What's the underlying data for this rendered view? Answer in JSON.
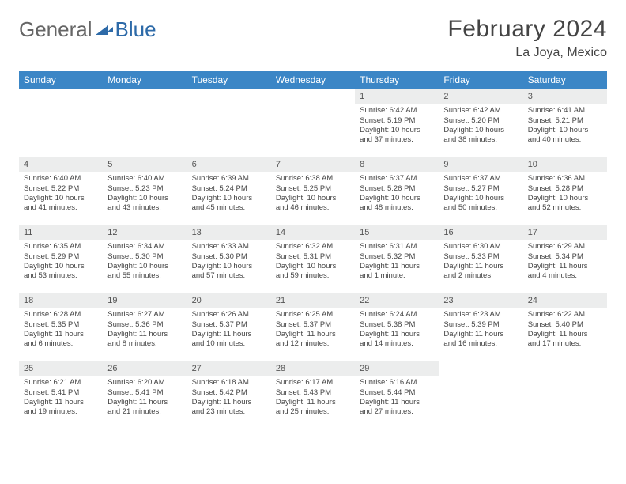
{
  "logo": {
    "part1": "General",
    "part2": "Blue"
  },
  "title": "February 2024",
  "location": "La Joya, Mexico",
  "headerColor": "#3b86c6",
  "borderColor": "#3b6a9a",
  "dayBg": "#eceded",
  "dayNames": [
    "Sunday",
    "Monday",
    "Tuesday",
    "Wednesday",
    "Thursday",
    "Friday",
    "Saturday"
  ],
  "weeks": [
    [
      {
        "n": "",
        "sr": "",
        "ss": "",
        "dl": ""
      },
      {
        "n": "",
        "sr": "",
        "ss": "",
        "dl": ""
      },
      {
        "n": "",
        "sr": "",
        "ss": "",
        "dl": ""
      },
      {
        "n": "",
        "sr": "",
        "ss": "",
        "dl": ""
      },
      {
        "n": "1",
        "sr": "Sunrise: 6:42 AM",
        "ss": "Sunset: 5:19 PM",
        "dl": "Daylight: 10 hours and 37 minutes."
      },
      {
        "n": "2",
        "sr": "Sunrise: 6:42 AM",
        "ss": "Sunset: 5:20 PM",
        "dl": "Daylight: 10 hours and 38 minutes."
      },
      {
        "n": "3",
        "sr": "Sunrise: 6:41 AM",
        "ss": "Sunset: 5:21 PM",
        "dl": "Daylight: 10 hours and 40 minutes."
      }
    ],
    [
      {
        "n": "4",
        "sr": "Sunrise: 6:40 AM",
        "ss": "Sunset: 5:22 PM",
        "dl": "Daylight: 10 hours and 41 minutes."
      },
      {
        "n": "5",
        "sr": "Sunrise: 6:40 AM",
        "ss": "Sunset: 5:23 PM",
        "dl": "Daylight: 10 hours and 43 minutes."
      },
      {
        "n": "6",
        "sr": "Sunrise: 6:39 AM",
        "ss": "Sunset: 5:24 PM",
        "dl": "Daylight: 10 hours and 45 minutes."
      },
      {
        "n": "7",
        "sr": "Sunrise: 6:38 AM",
        "ss": "Sunset: 5:25 PM",
        "dl": "Daylight: 10 hours and 46 minutes."
      },
      {
        "n": "8",
        "sr": "Sunrise: 6:37 AM",
        "ss": "Sunset: 5:26 PM",
        "dl": "Daylight: 10 hours and 48 minutes."
      },
      {
        "n": "9",
        "sr": "Sunrise: 6:37 AM",
        "ss": "Sunset: 5:27 PM",
        "dl": "Daylight: 10 hours and 50 minutes."
      },
      {
        "n": "10",
        "sr": "Sunrise: 6:36 AM",
        "ss": "Sunset: 5:28 PM",
        "dl": "Daylight: 10 hours and 52 minutes."
      }
    ],
    [
      {
        "n": "11",
        "sr": "Sunrise: 6:35 AM",
        "ss": "Sunset: 5:29 PM",
        "dl": "Daylight: 10 hours and 53 minutes."
      },
      {
        "n": "12",
        "sr": "Sunrise: 6:34 AM",
        "ss": "Sunset: 5:30 PM",
        "dl": "Daylight: 10 hours and 55 minutes."
      },
      {
        "n": "13",
        "sr": "Sunrise: 6:33 AM",
        "ss": "Sunset: 5:30 PM",
        "dl": "Daylight: 10 hours and 57 minutes."
      },
      {
        "n": "14",
        "sr": "Sunrise: 6:32 AM",
        "ss": "Sunset: 5:31 PM",
        "dl": "Daylight: 10 hours and 59 minutes."
      },
      {
        "n": "15",
        "sr": "Sunrise: 6:31 AM",
        "ss": "Sunset: 5:32 PM",
        "dl": "Daylight: 11 hours and 1 minute."
      },
      {
        "n": "16",
        "sr": "Sunrise: 6:30 AM",
        "ss": "Sunset: 5:33 PM",
        "dl": "Daylight: 11 hours and 2 minutes."
      },
      {
        "n": "17",
        "sr": "Sunrise: 6:29 AM",
        "ss": "Sunset: 5:34 PM",
        "dl": "Daylight: 11 hours and 4 minutes."
      }
    ],
    [
      {
        "n": "18",
        "sr": "Sunrise: 6:28 AM",
        "ss": "Sunset: 5:35 PM",
        "dl": "Daylight: 11 hours and 6 minutes."
      },
      {
        "n": "19",
        "sr": "Sunrise: 6:27 AM",
        "ss": "Sunset: 5:36 PM",
        "dl": "Daylight: 11 hours and 8 minutes."
      },
      {
        "n": "20",
        "sr": "Sunrise: 6:26 AM",
        "ss": "Sunset: 5:37 PM",
        "dl": "Daylight: 11 hours and 10 minutes."
      },
      {
        "n": "21",
        "sr": "Sunrise: 6:25 AM",
        "ss": "Sunset: 5:37 PM",
        "dl": "Daylight: 11 hours and 12 minutes."
      },
      {
        "n": "22",
        "sr": "Sunrise: 6:24 AM",
        "ss": "Sunset: 5:38 PM",
        "dl": "Daylight: 11 hours and 14 minutes."
      },
      {
        "n": "23",
        "sr": "Sunrise: 6:23 AM",
        "ss": "Sunset: 5:39 PM",
        "dl": "Daylight: 11 hours and 16 minutes."
      },
      {
        "n": "24",
        "sr": "Sunrise: 6:22 AM",
        "ss": "Sunset: 5:40 PM",
        "dl": "Daylight: 11 hours and 17 minutes."
      }
    ],
    [
      {
        "n": "25",
        "sr": "Sunrise: 6:21 AM",
        "ss": "Sunset: 5:41 PM",
        "dl": "Daylight: 11 hours and 19 minutes."
      },
      {
        "n": "26",
        "sr": "Sunrise: 6:20 AM",
        "ss": "Sunset: 5:41 PM",
        "dl": "Daylight: 11 hours and 21 minutes."
      },
      {
        "n": "27",
        "sr": "Sunrise: 6:18 AM",
        "ss": "Sunset: 5:42 PM",
        "dl": "Daylight: 11 hours and 23 minutes."
      },
      {
        "n": "28",
        "sr": "Sunrise: 6:17 AM",
        "ss": "Sunset: 5:43 PM",
        "dl": "Daylight: 11 hours and 25 minutes."
      },
      {
        "n": "29",
        "sr": "Sunrise: 6:16 AM",
        "ss": "Sunset: 5:44 PM",
        "dl": "Daylight: 11 hours and 27 minutes."
      },
      {
        "n": "",
        "sr": "",
        "ss": "",
        "dl": ""
      },
      {
        "n": "",
        "sr": "",
        "ss": "",
        "dl": ""
      }
    ]
  ]
}
